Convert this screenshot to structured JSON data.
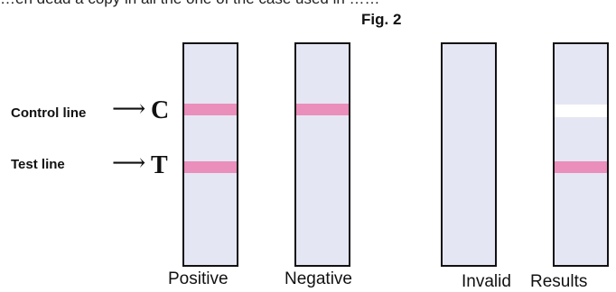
{
  "top_text": "…en dead a copy in all the one of the case used in ……",
  "figure": {
    "title": "Fig. 2"
  },
  "labels": {
    "control": "Control line",
    "test": "Test line",
    "arrow": "⟶",
    "c_letter": "C",
    "t_letter": "T"
  },
  "strips": [
    {
      "caption": "Positive",
      "control_band": true,
      "test_band": true
    },
    {
      "caption": "Negative",
      "control_band": true,
      "test_band": false
    },
    {
      "caption": "Invalid",
      "control_band": false,
      "test_band": false
    },
    {
      "caption": "Results",
      "control_band": false,
      "test_band": true,
      "control_gap": true
    }
  ],
  "colors": {
    "strip_fill": "#e5e6f3",
    "band": "#ea8ebb",
    "outline": "#111111"
  }
}
